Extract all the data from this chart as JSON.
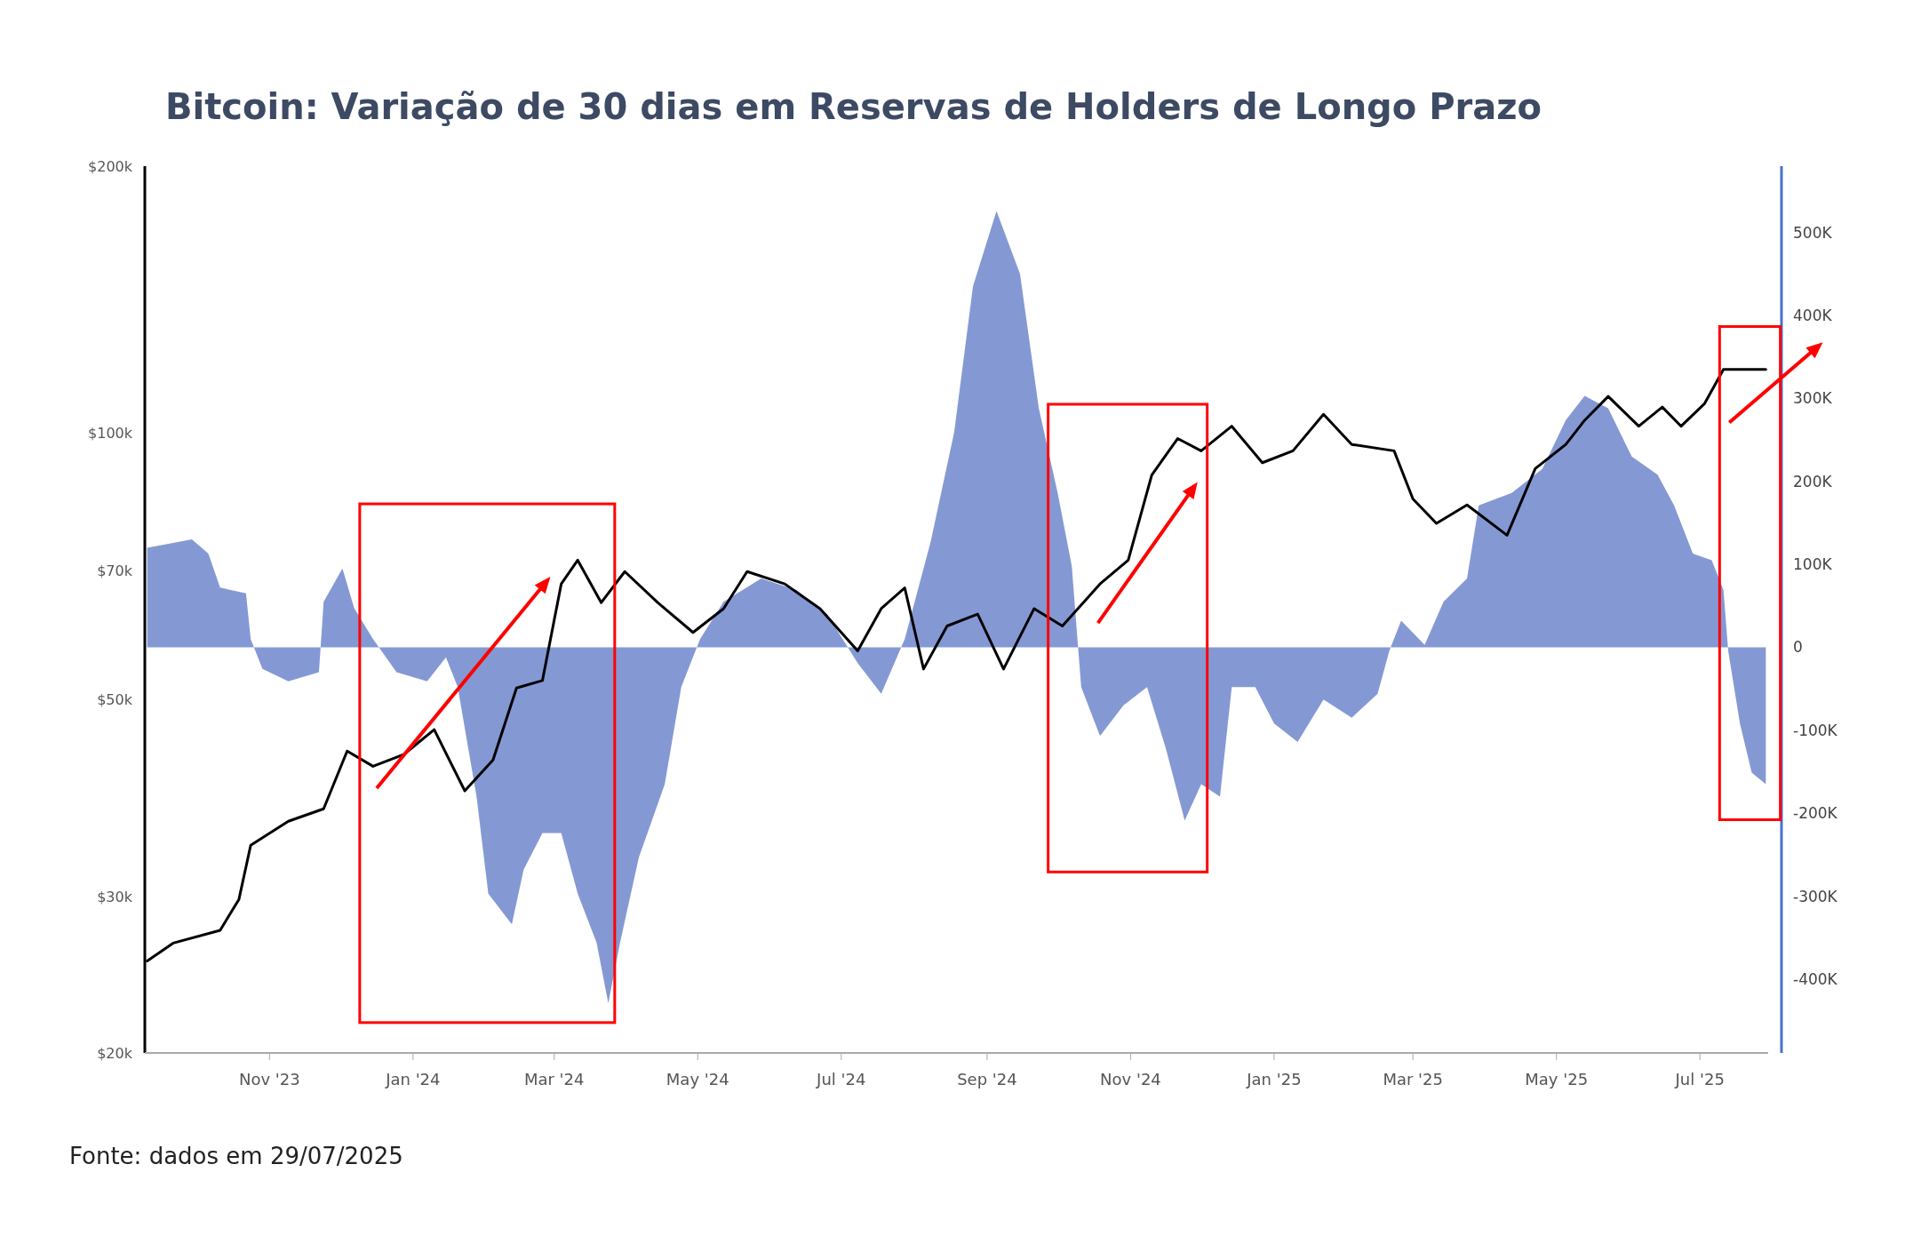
{
  "chart_data": {
    "type": "line",
    "title": "Bitcoin: Variação de 30 dias em Reservas de Holders de Longo Prazo",
    "annotations": [
      "Fonte: dados em 29/07/2025"
    ],
    "log": "y",
    "xlim": [
      "2023-09-09",
      "2025-07-30"
    ],
    "xticks": [
      {
        "value": "2023-11-01",
        "label": "Nov '23"
      },
      {
        "value": "2024-01-01",
        "label": "Jan '24"
      },
      {
        "value": "2024-03-01",
        "label": "Mar '24"
      },
      {
        "value": "2024-05-01",
        "label": "May '24"
      },
      {
        "value": "2024-07-01",
        "label": "Jul '24"
      },
      {
        "value": "2024-09-01",
        "label": "Sep '24"
      },
      {
        "value": "2024-11-01",
        "label": "Nov '24"
      },
      {
        "value": "2025-01-01",
        "label": "Jan '25"
      },
      {
        "value": "2025-03-01",
        "label": "Mar '25"
      },
      {
        "value": "2025-05-01",
        "label": "May '25"
      },
      {
        "value": "2025-07-01",
        "label": "Jul '25"
      }
    ],
    "ylim": [
      20000,
      200000
    ],
    "yticks": [
      {
        "value": 20000,
        "label": "$20k"
      },
      {
        "value": 30000,
        "label": "$30k"
      },
      {
        "value": 50000,
        "label": "$50k"
      },
      {
        "value": 70000,
        "label": "$70k"
      },
      {
        "value": 100000,
        "label": "$100k"
      },
      {
        "value": 200000,
        "label": "$200k"
      }
    ],
    "y2lim": [
      -489000,
      580000
    ],
    "y2ticks": [
      {
        "value": -400000,
        "label": "-400K"
      },
      {
        "value": -300000,
        "label": "-300K"
      },
      {
        "value": -200000,
        "label": "-200K"
      },
      {
        "value": -100000,
        "label": "-100K"
      },
      {
        "value": 0,
        "label": "0"
      },
      {
        "value": 100000,
        "label": "100K"
      },
      {
        "value": 200000,
        "label": "200K"
      },
      {
        "value": 300000,
        "label": "300K"
      },
      {
        "value": 400000,
        "label": "400K"
      },
      {
        "value": 500000,
        "label": "500K"
      }
    ],
    "series": [
      {
        "type": "area",
        "axis": "y2",
        "color": "#8499d4",
        "x": [
          "2023-09-10",
          "2023-09-29",
          "2023-10-06",
          "2023-10-11",
          "2023-10-22",
          "2023-10-24",
          "2023-10-29",
          "2023-11-09",
          "2023-11-22",
          "2023-11-24",
          "2023-12-02",
          "2023-12-07",
          "2023-12-15",
          "2023-12-25",
          "2024-01-07",
          "2024-01-15",
          "2024-01-20",
          "2024-01-28",
          "2024-02-02",
          "2024-02-12",
          "2024-02-17",
          "2024-02-25",
          "2024-03-04",
          "2024-03-11",
          "2024-03-19",
          "2024-03-24",
          "2024-03-29",
          "2024-04-06",
          "2024-04-17",
          "2024-04-24",
          "2024-05-02",
          "2024-05-12",
          "2024-05-28",
          "2024-06-12",
          "2024-06-25",
          "2024-07-08",
          "2024-07-18",
          "2024-07-28",
          "2024-08-08",
          "2024-08-18",
          "2024-08-26",
          "2024-09-05",
          "2024-09-15",
          "2024-09-23",
          "2024-10-01",
          "2024-10-07",
          "2024-10-11",
          "2024-10-19",
          "2024-10-29",
          "2024-11-08",
          "2024-11-16",
          "2024-11-24",
          "2024-12-01",
          "2024-12-09",
          "2024-12-14",
          "2024-12-24",
          "2025-01-01",
          "2025-01-11",
          "2025-01-22",
          "2025-02-03",
          "2025-02-14",
          "2025-02-19",
          "2025-02-24",
          "2025-03-06",
          "2025-03-14",
          "2025-03-24",
          "2025-03-29",
          "2025-04-12",
          "2025-04-25",
          "2025-05-05",
          "2025-05-13",
          "2025-05-23",
          "2025-06-02",
          "2025-06-13",
          "2025-06-20",
          "2025-06-28",
          "2025-07-06",
          "2025-07-11",
          "2025-07-13",
          "2025-07-18",
          "2025-07-23",
          "2025-07-29"
        ],
        "values": [
          120000,
          130000,
          113000,
          72000,
          65000,
          10000,
          -26000,
          -41000,
          -30000,
          55000,
          95000,
          47000,
          10000,
          -30000,
          -41000,
          -12000,
          -48000,
          -180000,
          -297000,
          -334000,
          -268000,
          -224000,
          -224000,
          -297000,
          -356000,
          -429000,
          -356000,
          -253000,
          -165000,
          -48000,
          10000,
          55000,
          83000,
          69000,
          40000,
          -19000,
          -56000,
          10000,
          127000,
          259000,
          435000,
          526000,
          450000,
          288000,
          186000,
          98000,
          -48000,
          -107000,
          -70000,
          -48000,
          -122000,
          -209000,
          -165000,
          -180000,
          -48000,
          -48000,
          -92000,
          -114000,
          -63000,
          -85000,
          -56000,
          -4000,
          32000,
          3000,
          55000,
          83000,
          171000,
          186000,
          215000,
          274000,
          303000,
          288000,
          230000,
          208000,
          171000,
          113000,
          105000,
          69000,
          -4000,
          -92000,
          -151000,
          -165000
        ]
      },
      {
        "color": "#000000",
        "x": [
          "2023-09-10",
          "2023-09-21",
          "2023-10-11",
          "2023-10-19",
          "2023-10-24",
          "2023-11-09",
          "2023-11-24",
          "2023-12-04",
          "2023-12-15",
          "2023-12-28",
          "2024-01-10",
          "2024-01-23",
          "2024-02-04",
          "2024-02-14",
          "2024-02-25",
          "2024-03-04",
          "2024-03-11",
          "2024-03-21",
          "2024-03-31",
          "2024-04-14",
          "2024-04-29",
          "2024-05-12",
          "2024-05-22",
          "2024-06-07",
          "2024-06-22",
          "2024-07-08",
          "2024-07-18",
          "2024-07-28",
          "2024-08-05",
          "2024-08-15",
          "2024-08-28",
          "2024-09-08",
          "2024-09-21",
          "2024-10-03",
          "2024-10-19",
          "2024-10-31",
          "2024-11-10",
          "2024-11-21",
          "2024-12-01",
          "2024-12-14",
          "2024-12-27",
          "2025-01-09",
          "2025-01-22",
          "2025-02-03",
          "2025-02-21",
          "2025-03-01",
          "2025-03-11",
          "2025-03-24",
          "2025-04-10",
          "2025-04-22",
          "2025-05-05",
          "2025-05-13",
          "2025-05-23",
          "2025-06-05",
          "2025-06-15",
          "2025-06-23",
          "2025-07-03",
          "2025-07-11",
          "2025-07-21",
          "2025-07-29"
        ],
        "values": [
          25400,
          26600,
          27500,
          29800,
          34300,
          36500,
          37700,
          43800,
          42100,
          43400,
          46300,
          39500,
          42800,
          51600,
          52600,
          67600,
          71900,
          64400,
          69800,
          64400,
          59600,
          63400,
          69800,
          67600,
          63400,
          56800,
          63400,
          66900,
          54200,
          60600,
          62500,
          54200,
          63400,
          60600,
          67600,
          71900,
          89700,
          98600,
          95500,
          101800,
          92600,
          95500,
          105000,
          97100,
          95500,
          84300,
          79100,
          83000,
          76700,
          91200,
          97100,
          103400,
          110000,
          101800,
          107000,
          101800,
          108000,
          118000,
          118000,
          118000
        ]
      }
    ]
  }
}
